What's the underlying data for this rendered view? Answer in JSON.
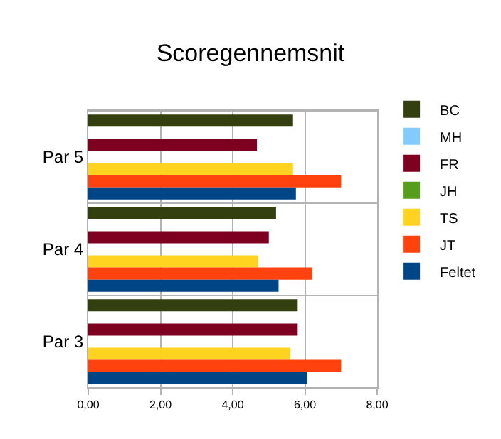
{
  "chart_data": {
    "type": "bar",
    "title": "Scoregennemsnit",
    "orientation": "horizontal",
    "categories": [
      "Par 5",
      "Par 4",
      "Par 3"
    ],
    "series": [
      {
        "name": "BC",
        "color": "#333f0f",
        "values": [
          5.67,
          5.2,
          5.8
        ]
      },
      {
        "name": "MH",
        "color": "#83caff",
        "values": [
          null,
          null,
          null
        ]
      },
      {
        "name": "FR",
        "color": "#7e0021",
        "values": [
          4.67,
          5.0,
          5.8
        ]
      },
      {
        "name": "JH",
        "color": "#579d1c",
        "values": [
          null,
          null,
          null
        ]
      },
      {
        "name": "TS",
        "color": "#ffd320",
        "values": [
          5.67,
          4.7,
          5.6
        ]
      },
      {
        "name": "JT",
        "color": "#ff420e",
        "values": [
          7.0,
          6.2,
          7.0
        ]
      },
      {
        "name": "Feltet",
        "color": "#004586",
        "values": [
          5.75,
          5.27,
          6.05
        ]
      }
    ],
    "xlim": [
      0,
      8
    ],
    "xticks": [
      {
        "value": 0,
        "label": "0,00"
      },
      {
        "value": 2,
        "label": "2,00"
      },
      {
        "value": 4,
        "label": "4,00"
      },
      {
        "value": 6,
        "label": "6,00"
      },
      {
        "value": 8,
        "label": "8,00"
      }
    ],
    "grid": true,
    "legend": "right"
  }
}
